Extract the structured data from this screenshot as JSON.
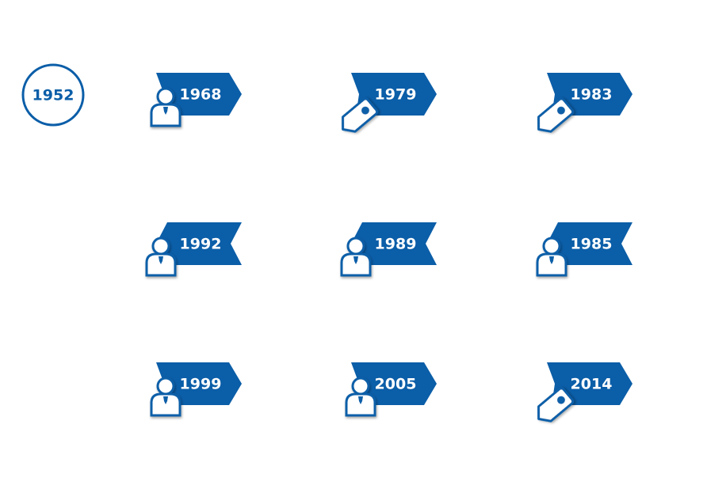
{
  "start": {
    "label": "1952"
  },
  "nodes": [
    {
      "label": "1968"
    },
    {
      "label": "1979"
    },
    {
      "label": "1983"
    },
    {
      "label": "1992"
    },
    {
      "label": "1989"
    },
    {
      "label": "1985"
    },
    {
      "label": "1999"
    },
    {
      "label": "2005"
    },
    {
      "label": "2014"
    }
  ]
}
